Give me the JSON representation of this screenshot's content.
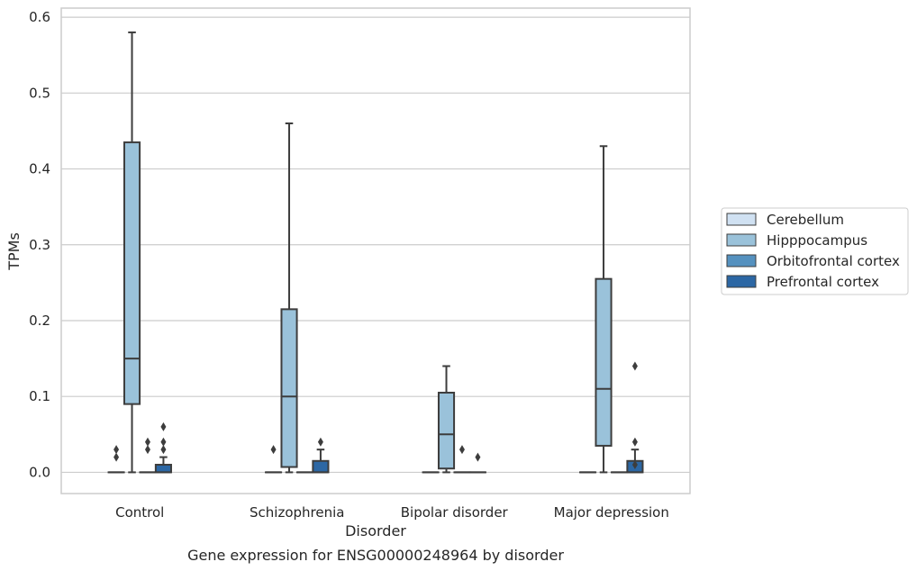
{
  "chart_data": {
    "type": "box",
    "title": "",
    "caption": "Gene expression for ENSG00000248964 by disorder",
    "xlabel": "Disorder",
    "ylabel": "TPMs",
    "ylim": [
      -0.028,
      0.612
    ],
    "yticks": [
      0.0,
      0.1,
      0.2,
      0.3,
      0.4,
      0.5,
      0.6
    ],
    "ytick_labels": [
      "0.0",
      "0.1",
      "0.2",
      "0.3",
      "0.4",
      "0.5",
      "0.6"
    ],
    "grid": "horizontal",
    "legend_position": "right",
    "categories": [
      "Control",
      "Schizophrenia",
      "Bipolar disorder",
      "Major depression"
    ],
    "series": [
      {
        "name": "Cerebellum",
        "color": "#d0e1f2",
        "boxes": [
          {
            "whislo": 0,
            "q1": 0,
            "med": 0,
            "q3": 0,
            "whishi": 0,
            "fliers": [
              0.02,
              0.03
            ]
          },
          {
            "whislo": 0,
            "q1": 0,
            "med": 0,
            "q3": 0,
            "whishi": 0,
            "fliers": [
              0.03
            ]
          },
          {
            "whislo": 0,
            "q1": 0,
            "med": 0,
            "q3": 0,
            "whishi": 0,
            "fliers": []
          },
          {
            "whislo": 0,
            "q1": 0,
            "med": 0,
            "q3": 0,
            "whishi": 0,
            "fliers": []
          }
        ]
      },
      {
        "name": "Hipppocampus",
        "color": "#9ac2da",
        "boxes": [
          {
            "whislo": 0,
            "q1": 0.09,
            "med": 0.15,
            "q3": 0.435,
            "whishi": 0.58,
            "fliers": []
          },
          {
            "whislo": 0,
            "q1": 0.007,
            "med": 0.1,
            "q3": 0.215,
            "whishi": 0.46,
            "fliers": []
          },
          {
            "whislo": 0,
            "q1": 0.005,
            "med": 0.05,
            "q3": 0.105,
            "whishi": 0.14,
            "fliers": []
          },
          {
            "whislo": 0,
            "q1": 0.035,
            "med": 0.11,
            "q3": 0.255,
            "whishi": 0.43,
            "fliers": []
          }
        ]
      },
      {
        "name": "Orbitofrontal cortex",
        "color": "#5591bf",
        "boxes": [
          {
            "whislo": 0,
            "q1": 0,
            "med": 0,
            "q3": 0,
            "whishi": 0,
            "fliers": [
              0.03,
              0.04
            ]
          },
          {
            "whislo": 0,
            "q1": 0,
            "med": 0,
            "q3": 0,
            "whishi": 0,
            "fliers": []
          },
          {
            "whislo": 0,
            "q1": 0,
            "med": 0,
            "q3": 0,
            "whishi": 0,
            "fliers": [
              0.03
            ]
          },
          {
            "whislo": 0,
            "q1": 0,
            "med": 0,
            "q3": 0,
            "whishi": 0,
            "fliers": []
          }
        ]
      },
      {
        "name": "Prefrontal cortex",
        "color": "#2c67a4",
        "boxes": [
          {
            "whislo": 0,
            "q1": 0,
            "med": 0,
            "q3": 0.01,
            "whishi": 0.02,
            "fliers": [
              0.03,
              0.04,
              0.06
            ]
          },
          {
            "whislo": 0,
            "q1": 0,
            "med": 0,
            "q3": 0.015,
            "whishi": 0.03,
            "fliers": [
              0.04
            ]
          },
          {
            "whislo": 0,
            "q1": 0,
            "med": 0,
            "q3": 0,
            "whishi": 0,
            "fliers": [
              0.02
            ]
          },
          {
            "whislo": 0,
            "q1": 0,
            "med": 0,
            "q3": 0.015,
            "whishi": 0.03,
            "fliers": [
              0.01,
              0.04,
              0.14
            ]
          }
        ]
      }
    ]
  }
}
